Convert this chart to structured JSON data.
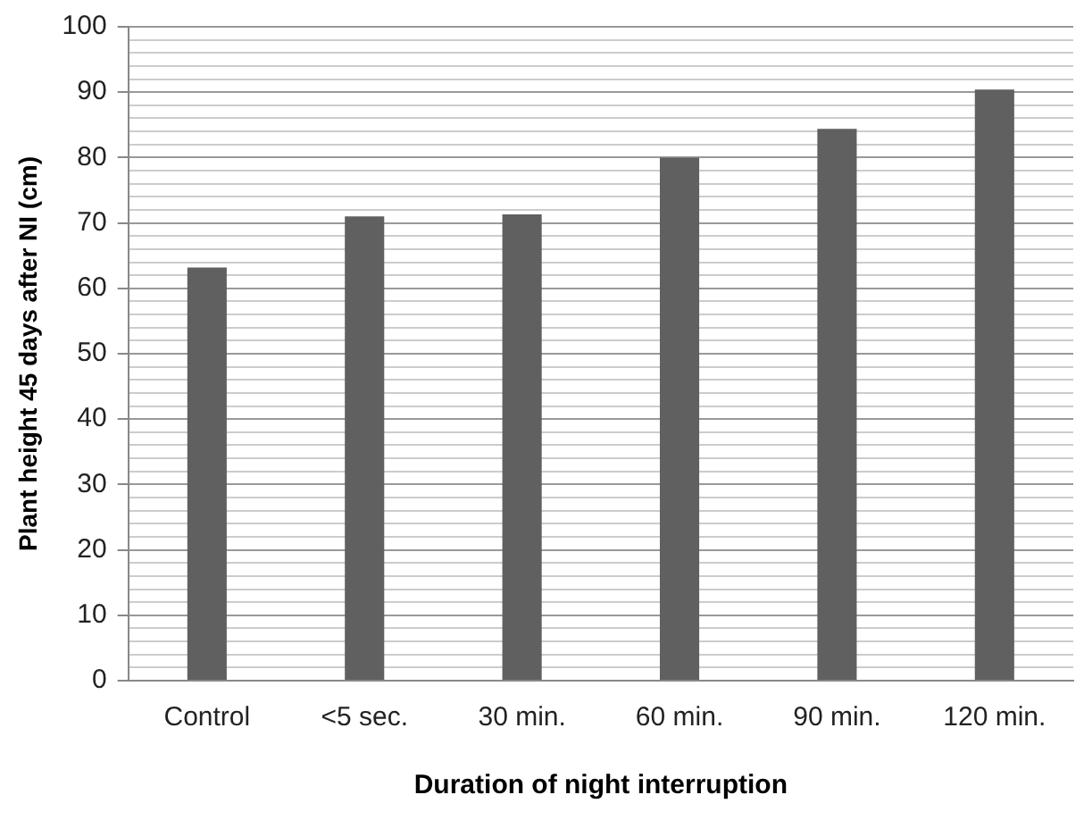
{
  "chart_data": {
    "type": "bar",
    "xlabel": "Duration of night interruption",
    "ylabel": "Plant height 45 days after NI (cm)",
    "categories": [
      "Control",
      "<5 sec.",
      "30 min.",
      "60 min.",
      "90 min.",
      "120 min."
    ],
    "values": [
      63.2,
      71,
      71.3,
      80,
      84.4,
      90.4
    ],
    "color": "#606060",
    "ylim": [
      0,
      100
    ],
    "yticks": [
      0,
      {
        "value": 2,
        "label": null
      },
      {
        "value": 4,
        "label": null
      },
      {
        "value": 6,
        "label": null
      },
      {
        "value": 8,
        "label": null
      },
      10,
      {
        "value": 12,
        "label": null
      },
      {
        "value": 14,
        "label": null
      },
      {
        "value": 16,
        "label": null
      },
      {
        "value": 18,
        "label": null
      },
      20,
      {
        "value": 22,
        "label": null
      },
      {
        "value": 24,
        "label": null
      },
      {
        "value": 26,
        "label": null
      },
      {
        "value": 28,
        "label": null
      },
      30,
      {
        "value": 32,
        "label": null
      },
      {
        "value": 34,
        "label": null
      },
      {
        "value": 36,
        "label": null
      },
      {
        "value": 38,
        "label": null
      },
      40,
      {
        "value": 42,
        "label": null
      },
      {
        "value": 44,
        "label": null
      },
      {
        "value": 46,
        "label": null
      },
      {
        "value": 48,
        "label": null
      },
      50,
      {
        "value": 52,
        "label": null
      },
      {
        "value": 54,
        "label": null
      },
      {
        "value": 56,
        "label": null
      },
      {
        "value": 58,
        "label": null
      },
      60,
      {
        "value": 62,
        "label": null
      },
      {
        "value": 64,
        "label": null
      },
      {
        "value": 66,
        "label": null
      },
      {
        "value": 68,
        "label": null
      },
      70,
      {
        "value": 72,
        "label": null
      },
      {
        "value": 74,
        "label": null
      },
      {
        "value": 76,
        "label": null
      },
      {
        "value": 78,
        "label": null
      },
      80,
      {
        "value": 82,
        "label": null
      },
      {
        "value": 84,
        "label": null
      },
      {
        "value": 86,
        "label": null
      },
      {
        "value": 88,
        "label": null
      },
      90,
      {
        "value": 92,
        "label": null
      },
      {
        "value": 94,
        "label": null
      },
      {
        "value": 96,
        "label": null
      },
      {
        "value": 98,
        "label": null
      },
      100
    ],
    "grid": "y",
    "legend": false
  }
}
